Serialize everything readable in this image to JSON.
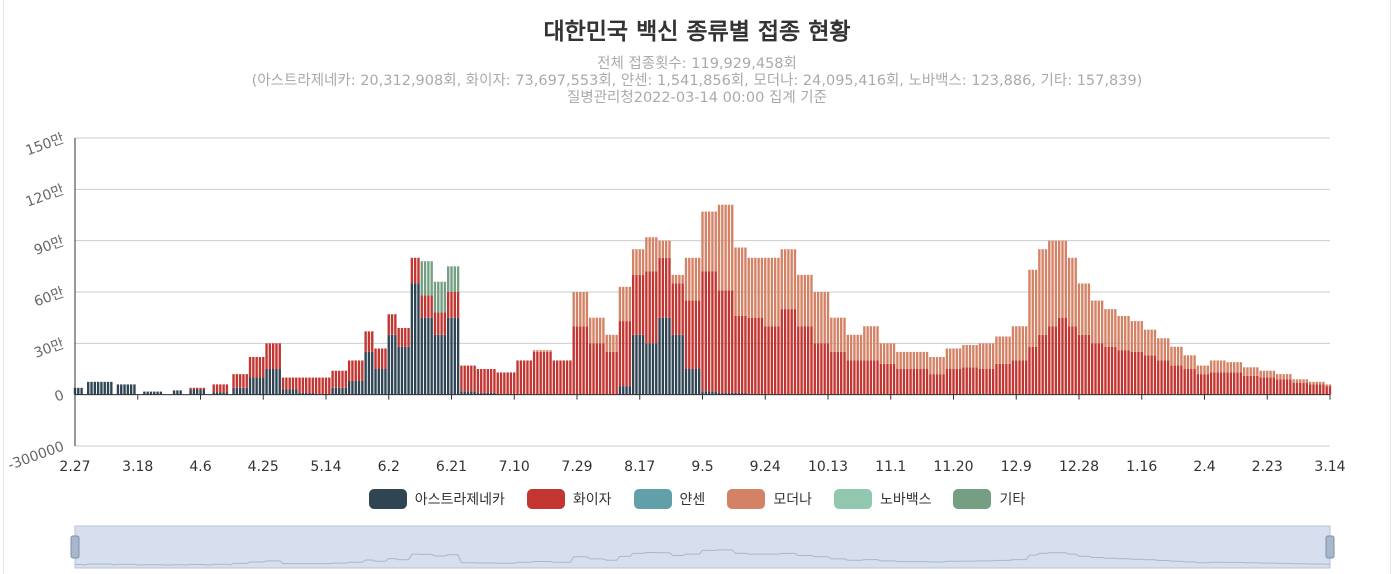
{
  "chart_data": {
    "type": "bar",
    "stacked": true,
    "title": "대한민국 백신 종류별 접종 현황",
    "subtitle_lines": [
      "전체 접종횟수: 119,929,458회",
      "(아스트라제네카: 20,312,908회, 화이자: 73,697,553회, 얀센: 1,541,856회, 모더나: 24,095,416회, 노바백스: 123,886, 기타: 157,839)",
      "질병관리청2022-03-14 00:00 집계 기준"
    ],
    "y_ticks": [
      "-300000",
      "0",
      "30만",
      "60만",
      "90만",
      "120만",
      "150만"
    ],
    "ylim": [
      -300000,
      1500000
    ],
    "x_tick_labels": [
      "2.27",
      "3.18",
      "4.6",
      "4.25",
      "5.14",
      "6.2",
      "6.21",
      "7.10",
      "7.29",
      "8.17",
      "9.5",
      "9.24",
      "10.13",
      "11.1",
      "11.20",
      "12.9",
      "12.28",
      "1.16",
      "2.4",
      "2.23",
      "3.14"
    ],
    "x_tick_days": [
      0,
      19,
      38,
      57,
      76,
      95,
      114,
      133,
      152,
      171,
      190,
      209,
      228,
      247,
      266,
      285,
      304,
      323,
      342,
      361,
      380
    ],
    "grid": true,
    "legend_position": "bottom",
    "colors": {
      "az": "#2f4554",
      "pfizer": "#c23531",
      "janssen": "#61a0a8",
      "moderna": "#d48265",
      "novavax": "#91c7ae",
      "etc": "#749f83"
    },
    "legend": [
      {
        "key": "az",
        "name": "아스트라제네카"
      },
      {
        "key": "pfizer",
        "name": "화이자"
      },
      {
        "key": "janssen",
        "name": "얀센"
      },
      {
        "key": "moderna",
        "name": "모더나"
      },
      {
        "key": "novavax",
        "name": "노바백스"
      },
      {
        "key": "etc",
        "name": "기타"
      }
    ],
    "series_order": [
      "az",
      "pfizer",
      "janssen",
      "moderna",
      "novavax",
      "etc"
    ],
    "segments": [
      [
        0,
        2,
        40000,
        0,
        0,
        0
      ],
      [
        4,
        11,
        75000,
        0,
        0,
        0
      ],
      [
        13,
        18,
        60000,
        0,
        0,
        0
      ],
      [
        21,
        26,
        18000,
        0,
        0,
        0
      ],
      [
        30,
        32,
        25000,
        0,
        0,
        0
      ],
      [
        35,
        39,
        30000,
        10000,
        0,
        0
      ],
      [
        42,
        46,
        15000,
        45000,
        0,
        0
      ],
      [
        48,
        52,
        40000,
        80000,
        0,
        0
      ],
      [
        53,
        57,
        100000,
        120000,
        0,
        0
      ],
      [
        58,
        62,
        150000,
        150000,
        0,
        0
      ],
      [
        63,
        67,
        30000,
        70000,
        0,
        0
      ],
      [
        68,
        72,
        10000,
        90000,
        0,
        0
      ],
      [
        73,
        77,
        0,
        100000,
        0,
        0
      ],
      [
        78,
        82,
        40000,
        100000,
        0,
        0
      ],
      [
        83,
        87,
        80000,
        120000,
        0,
        0
      ],
      [
        88,
        90,
        250000,
        120000,
        0,
        0
      ],
      [
        91,
        94,
        150000,
        120000,
        0,
        0
      ],
      [
        95,
        97,
        350000,
        120000,
        0,
        0
      ],
      [
        98,
        101,
        280000,
        110000,
        0,
        0
      ],
      [
        102,
        104,
        650000,
        150000,
        0,
        0
      ],
      [
        105,
        108,
        450000,
        130000,
        200000,
        0
      ],
      [
        109,
        112,
        350000,
        130000,
        180000,
        0
      ],
      [
        113,
        116,
        450000,
        150000,
        150000,
        0
      ],
      [
        117,
        121,
        20000,
        150000,
        0,
        0
      ],
      [
        122,
        127,
        10000,
        140000,
        0,
        0
      ],
      [
        128,
        133,
        0,
        130000,
        0,
        0
      ],
      [
        134,
        138,
        0,
        200000,
        0,
        0
      ],
      [
        139,
        144,
        0,
        250000,
        0,
        10000
      ],
      [
        145,
        150,
        0,
        200000,
        0,
        0
      ],
      [
        151,
        155,
        0,
        400000,
        0,
        200000
      ],
      [
        156,
        160,
        0,
        300000,
        0,
        150000
      ],
      [
        161,
        164,
        0,
        250000,
        0,
        100000
      ],
      [
        165,
        168,
        50000,
        380000,
        0,
        200000
      ],
      [
        169,
        172,
        350000,
        350000,
        0,
        150000
      ],
      [
        173,
        176,
        300000,
        420000,
        0,
        200000
      ],
      [
        177,
        180,
        450000,
        350000,
        0,
        100000
      ],
      [
        181,
        184,
        350000,
        300000,
        0,
        50000
      ],
      [
        185,
        189,
        150000,
        400000,
        0,
        250000
      ],
      [
        190,
        194,
        20000,
        700000,
        0,
        350000
      ],
      [
        195,
        199,
        10000,
        600000,
        0,
        500000
      ],
      [
        200,
        203,
        10000,
        450000,
        0,
        400000
      ],
      [
        204,
        208,
        0,
        450000,
        0,
        350000
      ],
      [
        209,
        213,
        0,
        400000,
        0,
        400000
      ],
      [
        214,
        218,
        0,
        500000,
        0,
        350000
      ],
      [
        219,
        223,
        0,
        400000,
        0,
        300000
      ],
      [
        224,
        228,
        0,
        300000,
        0,
        300000
      ],
      [
        229,
        233,
        0,
        250000,
        0,
        200000
      ],
      [
        234,
        238,
        0,
        200000,
        0,
        150000
      ],
      [
        239,
        243,
        0,
        200000,
        0,
        200000
      ],
      [
        244,
        248,
        0,
        180000,
        0,
        120000
      ],
      [
        249,
        253,
        0,
        150000,
        0,
        100000
      ],
      [
        254,
        258,
        0,
        150000,
        0,
        100000
      ],
      [
        259,
        263,
        0,
        120000,
        0,
        100000
      ],
      [
        264,
        268,
        0,
        150000,
        0,
        120000
      ],
      [
        269,
        273,
        0,
        160000,
        0,
        130000
      ],
      [
        274,
        278,
        0,
        150000,
        0,
        150000
      ],
      [
        279,
        283,
        0,
        180000,
        0,
        160000
      ],
      [
        284,
        288,
        0,
        200000,
        0,
        200000
      ],
      [
        289,
        291,
        0,
        280000,
        0,
        450000
      ],
      [
        292,
        294,
        0,
        350000,
        0,
        500000
      ],
      [
        295,
        297,
        0,
        400000,
        0,
        500000
      ],
      [
        298,
        300,
        0,
        450000,
        0,
        450000
      ],
      [
        301,
        303,
        0,
        400000,
        0,
        400000
      ],
      [
        304,
        307,
        0,
        350000,
        0,
        300000
      ],
      [
        308,
        311,
        0,
        300000,
        0,
        250000
      ],
      [
        312,
        315,
        0,
        280000,
        0,
        220000
      ],
      [
        316,
        319,
        0,
        260000,
        0,
        200000
      ],
      [
        320,
        323,
        0,
        250000,
        0,
        180000
      ],
      [
        324,
        327,
        0,
        230000,
        0,
        150000
      ],
      [
        328,
        331,
        0,
        200000,
        0,
        130000
      ],
      [
        332,
        335,
        0,
        170000,
        0,
        110000
      ],
      [
        336,
        339,
        0,
        150000,
        0,
        80000
      ],
      [
        340,
        343,
        0,
        120000,
        0,
        50000
      ],
      [
        344,
        348,
        0,
        130000,
        0,
        70000
      ],
      [
        349,
        353,
        0,
        130000,
        0,
        60000
      ],
      [
        354,
        358,
        0,
        110000,
        0,
        50000
      ],
      [
        359,
        363,
        0,
        100000,
        0,
        40000
      ],
      [
        364,
        368,
        0,
        90000,
        0,
        30000
      ],
      [
        369,
        373,
        0,
        70000,
        0,
        20000
      ],
      [
        374,
        378,
        0,
        60000,
        0,
        15000
      ],
      [
        379,
        380,
        0,
        50000,
        0,
        10000
      ]
    ]
  }
}
